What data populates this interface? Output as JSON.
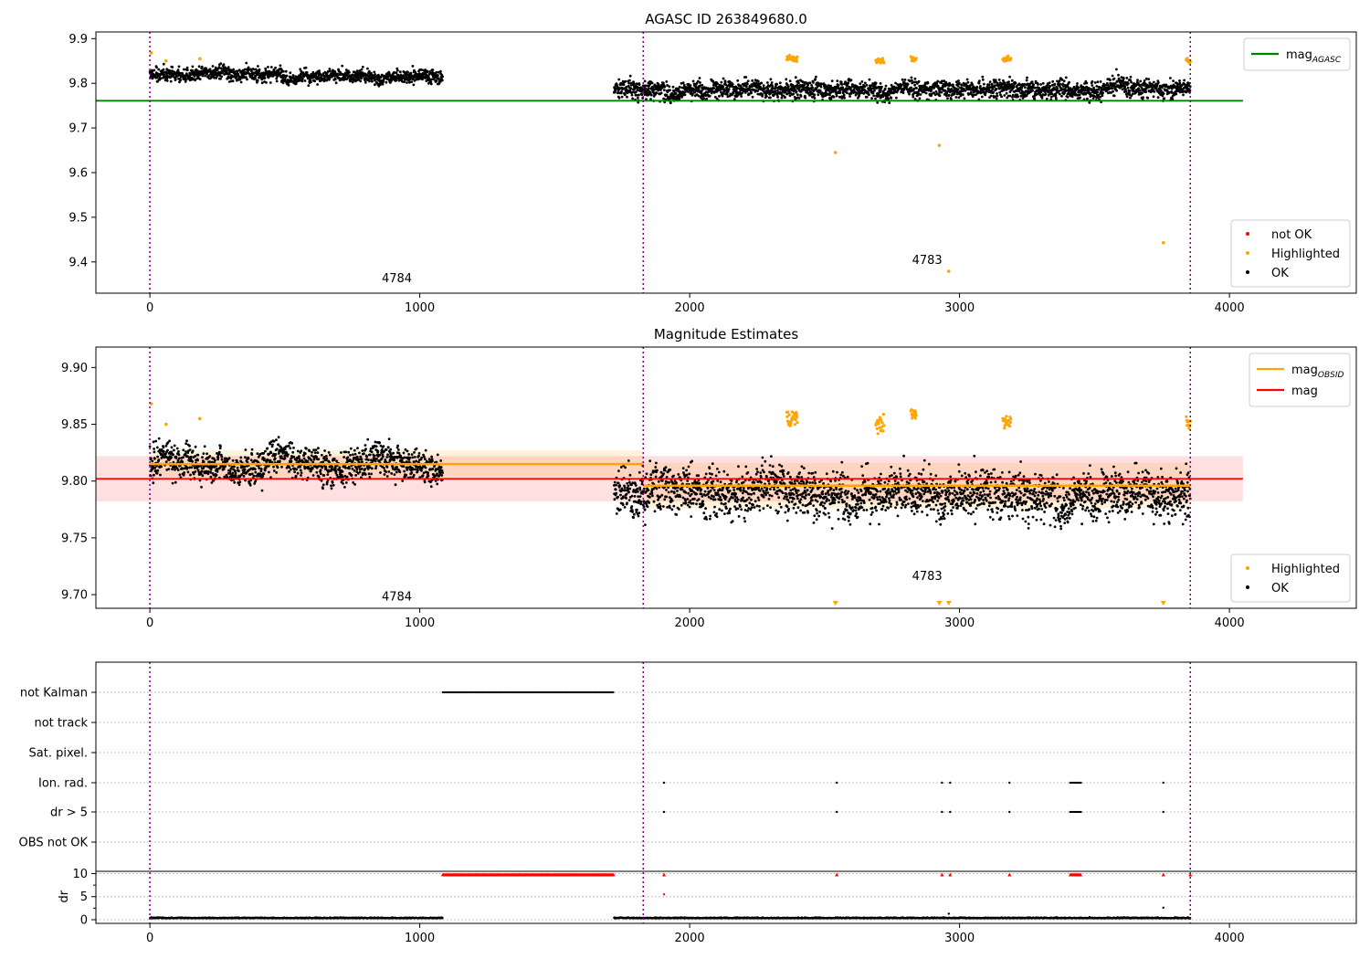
{
  "figure": {
    "panels": [
      "panel-agasc",
      "panel-estimates",
      "panel-flags"
    ]
  },
  "chart_data": [
    {
      "id": "panel-agasc",
      "type": "scatter",
      "title": "AGASC ID 263849680.0",
      "xlim": [
        -200,
        4470
      ],
      "ylim": [
        9.33,
        9.915
      ],
      "xticks": [
        0,
        1000,
        2000,
        3000,
        4000
      ],
      "yticks": [
        9.4,
        9.5,
        9.6,
        9.7,
        9.8,
        9.9
      ],
      "obs_boundaries": [
        0,
        1828,
        3855
      ],
      "obs_labels": [
        {
          "text": "4784",
          "x": 915,
          "y": 9.355
        },
        {
          "text": "4783",
          "x": 2880,
          "y": 9.395
        }
      ],
      "hlines": [
        {
          "name": "mag",
          "subscript": "AGASC",
          "y": 9.761,
          "x": [
            -200,
            4050
          ],
          "color": "#008000"
        }
      ],
      "segments": [
        {
          "x": [
            0,
            1085
          ],
          "mean": 9.818,
          "sd": 0.012
        },
        {
          "x": [
            1720,
            3855
          ],
          "mean": 9.79,
          "sd": 0.017
        }
      ],
      "highlight_clusters": [
        {
          "x": [
            2360,
            2400
          ],
          "y": 9.855
        },
        {
          "x": [
            2690,
            2720
          ],
          "y": 9.85
        },
        {
          "x": [
            2820,
            2840
          ],
          "y": 9.855
        },
        {
          "x": [
            3160,
            3190
          ],
          "y": 9.853
        },
        {
          "x": [
            3840,
            3855
          ],
          "y": 9.852
        }
      ],
      "highlight_points": [
        {
          "x": 5,
          "y": 9.868
        },
        {
          "x": 60,
          "y": 9.85
        },
        {
          "x": 185,
          "y": 9.855
        },
        {
          "x": 2540,
          "y": 9.645
        },
        {
          "x": 2925,
          "y": 9.661
        },
        {
          "x": 2960,
          "y": 9.379
        },
        {
          "x": 3755,
          "y": 9.443
        }
      ],
      "legend_top": [
        {
          "label": "mag",
          "subscript": "AGASC",
          "color": "#008000",
          "kind": "line"
        }
      ],
      "legend_bottom": [
        {
          "label": "not OK",
          "color": "#ff0000",
          "kind": "dot"
        },
        {
          "label": "Highlighted",
          "color": "#ffa500",
          "kind": "dot"
        },
        {
          "label": "OK",
          "color": "#000000",
          "kind": "dot"
        }
      ]
    },
    {
      "id": "panel-estimates",
      "type": "scatter",
      "title": "Magnitude Estimates",
      "xlim": [
        -200,
        4470
      ],
      "ylim": [
        9.688,
        9.918
      ],
      "xticks": [
        0,
        1000,
        2000,
        3000,
        4000
      ],
      "yticks": [
        9.7,
        9.75,
        9.8,
        9.85,
        9.9
      ],
      "ytick_labels": [
        "9.70",
        "9.75",
        "9.80",
        "9.85",
        "9.90"
      ],
      "obs_boundaries": [
        0,
        1828,
        3855
      ],
      "obs_labels": [
        {
          "text": "4784",
          "x": 915,
          "y": 9.695
        },
        {
          "text": "4783",
          "x": 2880,
          "y": 9.713
        }
      ],
      "hlines": [
        {
          "name": "mag",
          "subscript": "OBSID",
          "y": 9.815,
          "x": [
            0,
            1828
          ],
          "color": "#ffa500",
          "band": 0.012
        },
        {
          "name": "mag",
          "subscript": "OBSID",
          "y": 9.796,
          "x": [
            1828,
            3855
          ],
          "color": "#ffa500",
          "band": 0.02
        },
        {
          "name": "mag",
          "subscript": "",
          "y": 9.802,
          "x": [
            -200,
            4050
          ],
          "color": "#ff0000",
          "band": 0.02
        }
      ],
      "segments": [
        {
          "x": [
            0,
            1085
          ],
          "mean": 9.815,
          "sd": 0.012
        },
        {
          "x": [
            1720,
            3855
          ],
          "mean": 9.792,
          "sd": 0.017
        }
      ],
      "highlight_clusters": [
        {
          "x": [
            2360,
            2400
          ],
          "y": 9.855
        },
        {
          "x": [
            2690,
            2720
          ],
          "y": 9.85
        },
        {
          "x": [
            2820,
            2840
          ],
          "y": 9.858
        },
        {
          "x": [
            3160,
            3190
          ],
          "y": 9.853
        },
        {
          "x": [
            3840,
            3855
          ],
          "y": 9.852
        }
      ],
      "highlight_points": [
        {
          "x": 5,
          "y": 9.868
        },
        {
          "x": 60,
          "y": 9.85
        },
        {
          "x": 185,
          "y": 9.855
        }
      ],
      "offscale_markers": [
        2540,
        2925,
        2960,
        3755
      ],
      "legend_top": [
        {
          "label": "mag",
          "subscript": "OBSID",
          "color": "#ffa500",
          "kind": "line"
        },
        {
          "label": "mag",
          "subscript": "",
          "color": "#ff0000",
          "kind": "line"
        }
      ],
      "legend_bottom": [
        {
          "label": "Highlighted",
          "color": "#ffa500",
          "kind": "dot"
        },
        {
          "label": "OK",
          "color": "#000000",
          "kind": "dot"
        }
      ]
    },
    {
      "id": "panel-flags",
      "type": "scatter",
      "xlim": [
        -200,
        4470
      ],
      "xticks": [
        0,
        1000,
        2000,
        3000,
        4000
      ],
      "flag_rows": [
        "not Kalman",
        "not track",
        "Sat. pixel.",
        "Ion. rad.",
        "dr > 5",
        "OBS not OK"
      ],
      "obs_boundaries": [
        0,
        1828,
        3855
      ],
      "flags": {
        "not Kalman": {
          "ranges": [
            [
              1085,
              1720
            ]
          ],
          "points": []
        },
        "not track": {
          "ranges": [],
          "points": []
        },
        "Sat. pixel.": {
          "ranges": [],
          "points": []
        },
        "Ion. rad.": {
          "ranges": [
            [
              3410,
              3450
            ]
          ],
          "points": [
            1905,
            2545,
            2935,
            2965,
            3185,
            3755
          ]
        },
        "dr > 5": {
          "ranges": [
            [
              3410,
              3450
            ]
          ],
          "points": [
            1905,
            2545,
            2935,
            2965,
            3185,
            3755
          ]
        },
        "OBS not OK": {
          "ranges": [],
          "points": []
        }
      },
      "dr": {
        "ylabel": "dr",
        "yticks": [
          0,
          5,
          10
        ],
        "ylim": [
          -0.8,
          10.5
        ],
        "clip": 9.8,
        "segments": [
          [
            0,
            1085
          ],
          [
            1720,
            3855
          ]
        ],
        "baseline": 0.3,
        "clipped_ranges": [
          [
            1085,
            1720
          ],
          [
            3410,
            3450
          ]
        ],
        "clipped_points": [
          1905,
          2545,
          2935,
          2965,
          3185,
          3755,
          3855
        ],
        "outliers": [
          {
            "x": 1905,
            "y": 5.5
          },
          {
            "x": 3755,
            "y": 2.6
          },
          {
            "x": 2960,
            "y": 1.3
          }
        ]
      }
    }
  ]
}
